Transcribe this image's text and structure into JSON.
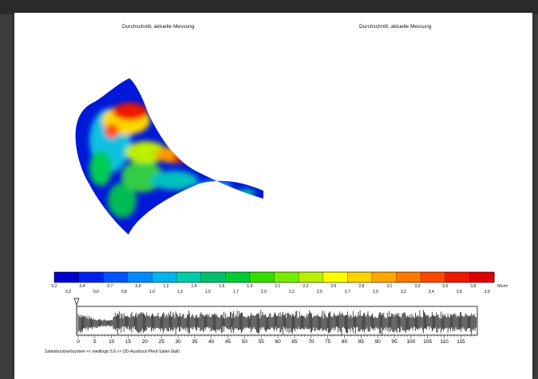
{
  "viewer": {
    "background": "#3c3c3c",
    "page_background": "#ffffff"
  },
  "panels": [
    {
      "title": "Durchschnitt, aktuelle Messung",
      "side": "left"
    },
    {
      "title": "Durchschnitt, aktuelle Messung",
      "side": "right"
    }
  ],
  "colorbar": {
    "unit": "N/cm²",
    "labels_top": [
      "0,2",
      "0,4",
      "0,7",
      "0,9",
      "1,2",
      "1,4",
      "1,6",
      "1,9",
      "2,1",
      "2,3",
      "2,6",
      "2,8",
      "3,1",
      "3,3",
      "3,5",
      "3,8"
    ],
    "labels_bottom": [
      "0,3",
      "0,6",
      "0,8",
      "1,0",
      "1,3",
      "1,5",
      "1,7",
      "2,0",
      "2,2",
      "2,5",
      "2,7",
      "2,9",
      "3,2",
      "3,4",
      "3,6",
      "3,9"
    ],
    "colors": [
      "#0000cc",
      "#0022ee",
      "#0055ff",
      "#0088ff",
      "#00b4ee",
      "#00ccaa",
      "#00c070",
      "#00cc33",
      "#33dd00",
      "#77ee00",
      "#bbf000",
      "#ffff00",
      "#ffd400",
      "#ffa800",
      "#ff7800",
      "#ff4800",
      "#ee1800",
      "#dd0000"
    ]
  },
  "timeline": {
    "ticks": [
      "0",
      "5",
      "10",
      "15",
      "20",
      "25",
      "30",
      "35",
      "40",
      "45",
      "50",
      "55",
      "60",
      "65",
      "70",
      "75",
      "80",
      "85",
      "90",
      "95",
      "100",
      "105",
      "110",
      "115"
    ],
    "marker_label": "start-marker"
  },
  "footer": {
    "text": "Satteldruckmeßsystem << medilogic 5.8 >> (3D-Ausdruck Pferd-Sattel-Stall)"
  }
}
